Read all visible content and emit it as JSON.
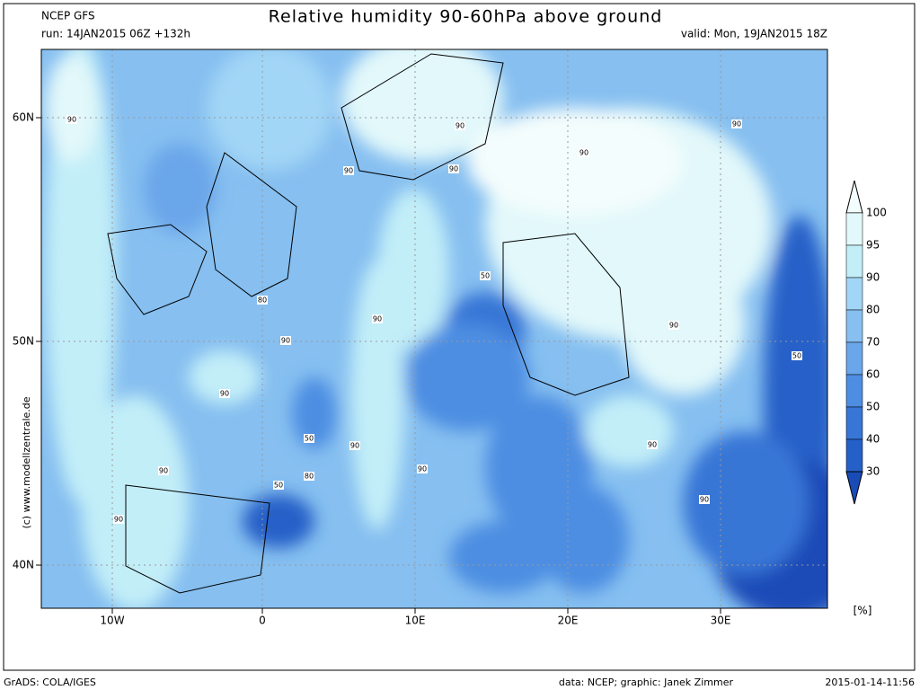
{
  "header": {
    "model": "NCEP GFS",
    "run": "run: 14JAN2015 06Z +132h",
    "title": "Relative humidity 90-60hPa above ground",
    "valid": "valid: Mon, 19JAN2015 18Z"
  },
  "map": {
    "lat_labels": [
      "60N",
      "50N",
      "40N"
    ],
    "lon_labels": [
      "10W",
      "0",
      "10E",
      "20E",
      "30E"
    ],
    "contour_labels": [
      "90",
      "90",
      "90",
      "90",
      "90",
      "90",
      "50",
      "80",
      "90",
      "90",
      "90",
      "50",
      "90",
      "50",
      "90",
      "90",
      "90",
      "80",
      "90",
      "50",
      "90",
      "90"
    ],
    "watermark": "(c) www.modellzentrale.de"
  },
  "legend": {
    "levels": [
      100,
      95,
      90,
      80,
      70,
      60,
      50,
      40,
      30
    ],
    "unit": "[%]",
    "colors": [
      "#f4fdfd",
      "#e2f8fa",
      "#c2eef8",
      "#a2d6f6",
      "#86bff0",
      "#6aa6ea",
      "#4e8ee2",
      "#3776d6",
      "#2560c8",
      "#1a4cb8"
    ]
  },
  "footer": {
    "software": "GrADS: COLA/IGES",
    "credit": "data: NCEP; graphic: Janek Zimmer",
    "timestamp": "2015-01-14-11:56"
  }
}
